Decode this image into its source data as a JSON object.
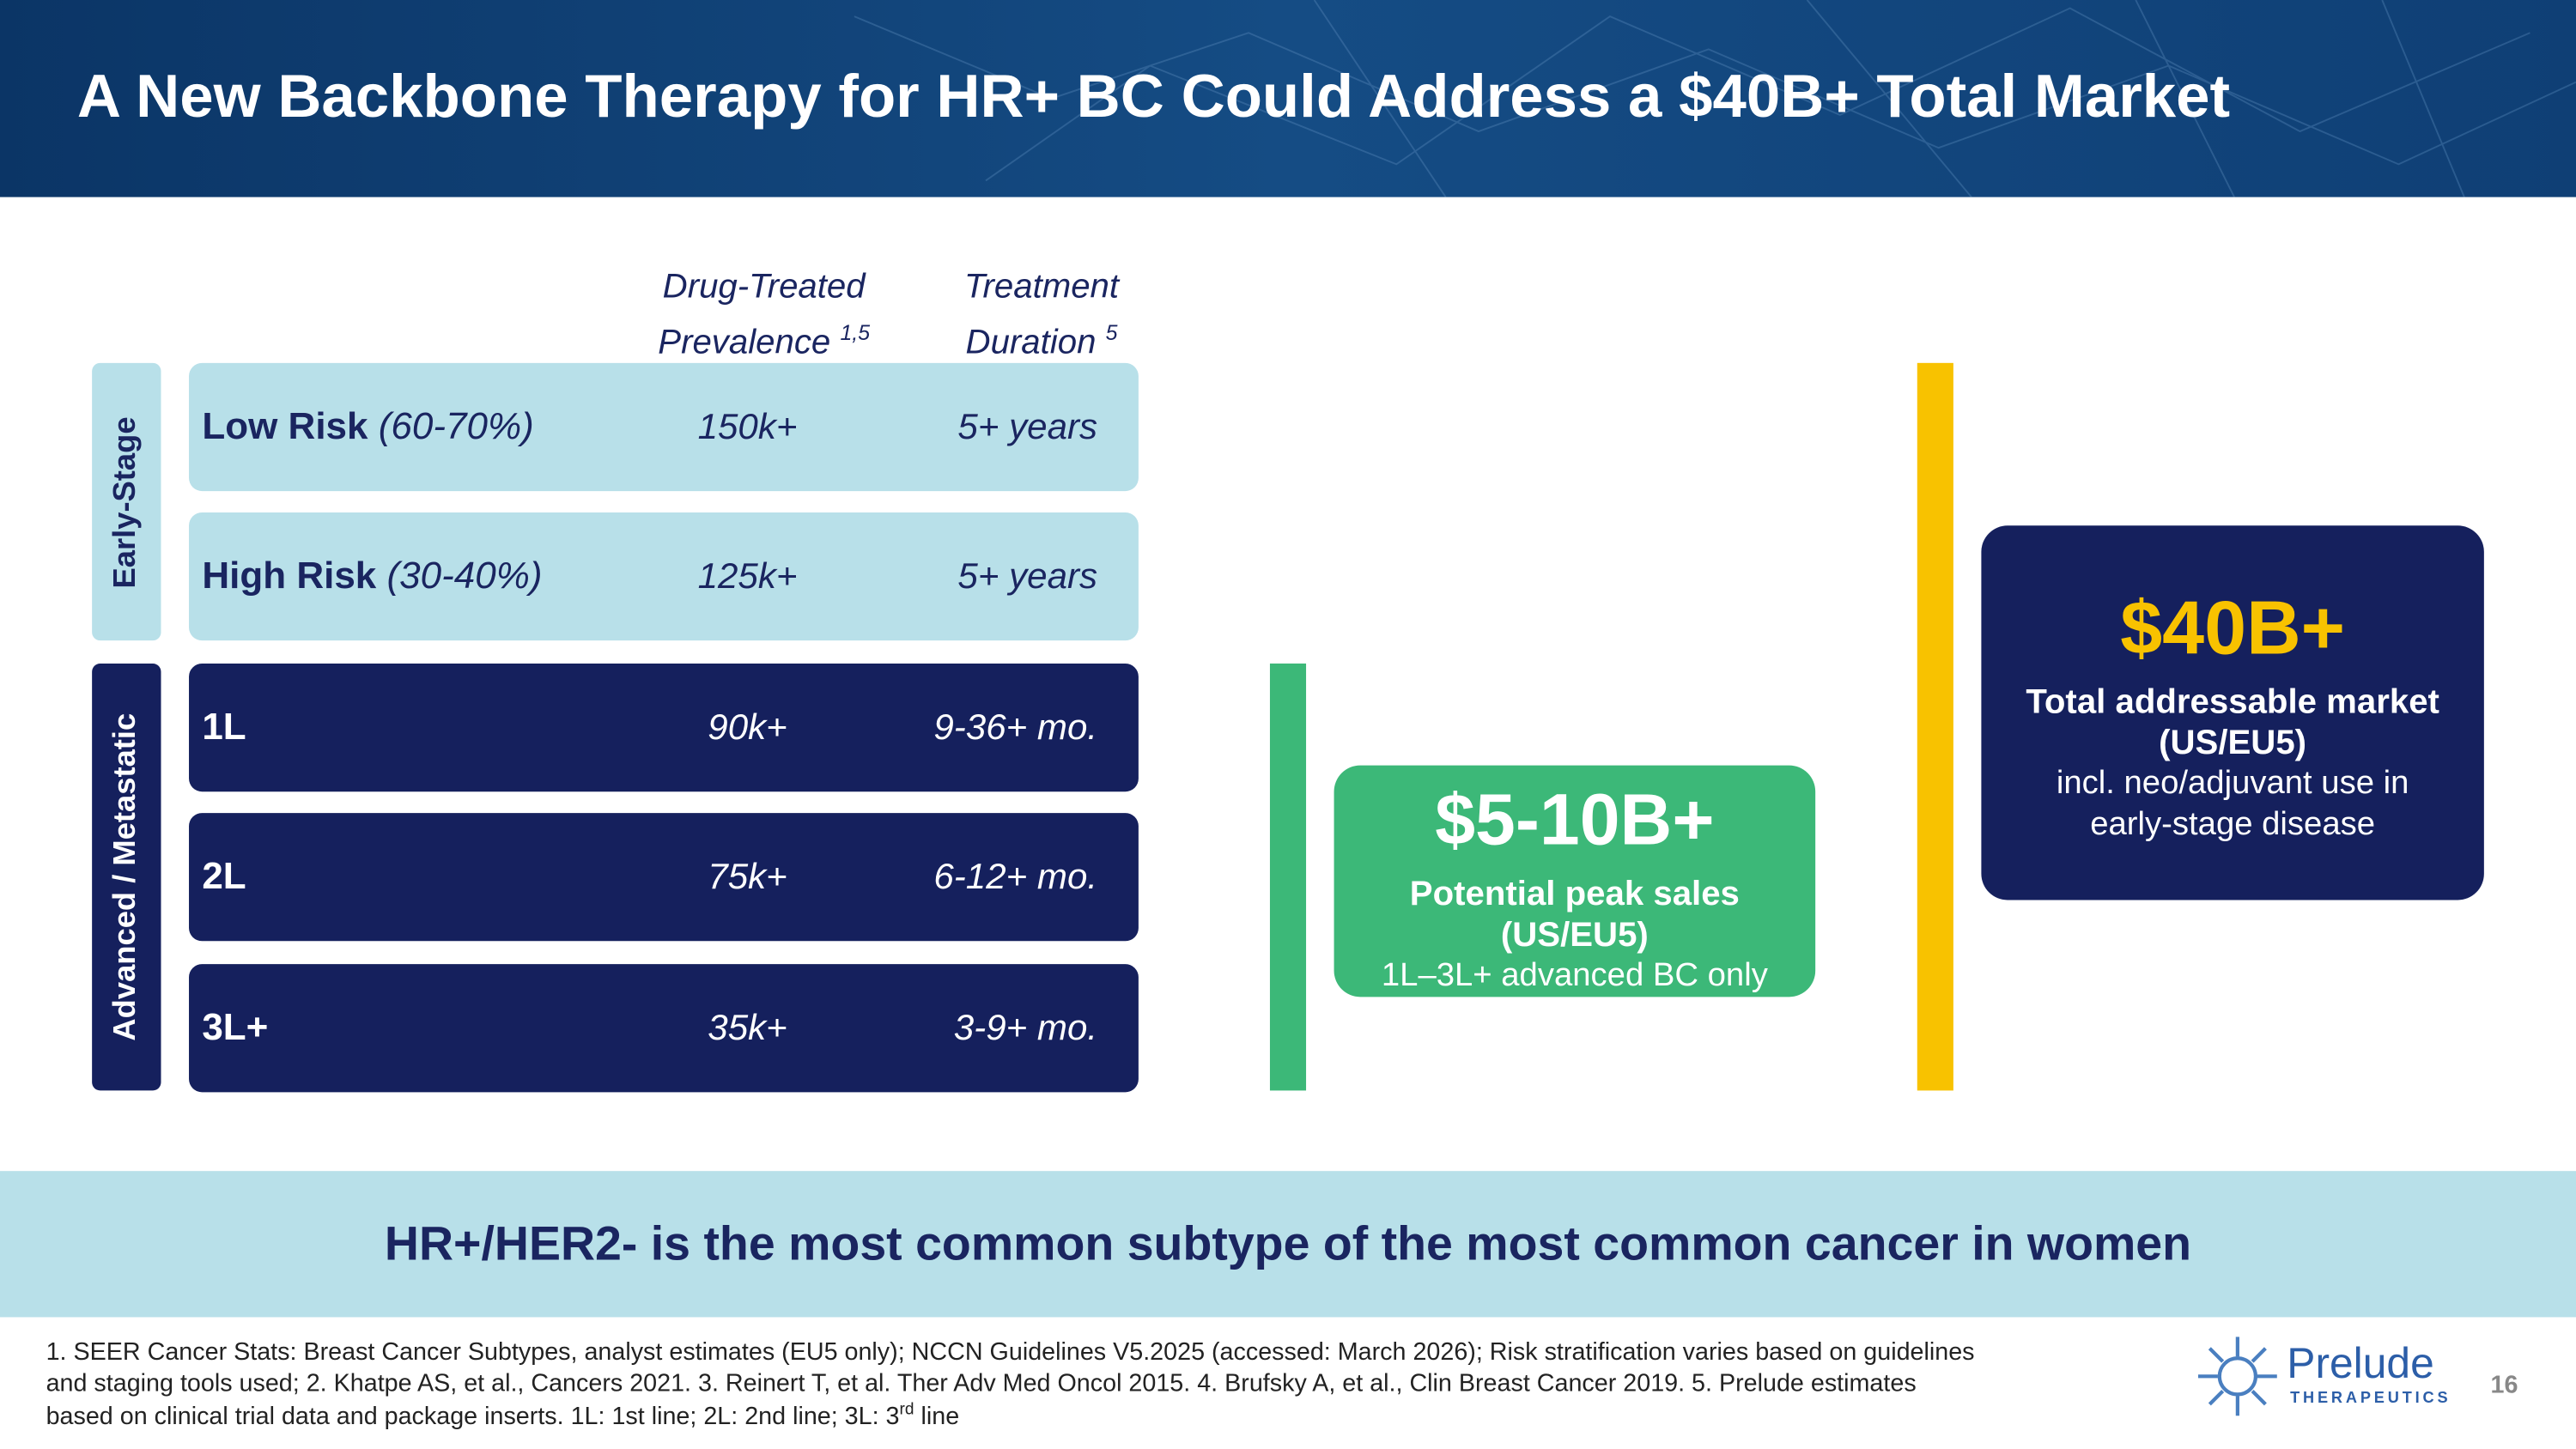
{
  "header": {
    "title": "A New Backbone Therapy for HR+ BC Could Address a $40B+ Total Market"
  },
  "table": {
    "columns": [
      {
        "line1": "Drug-Treated",
        "line2": "Prevalence",
        "sup": "1,5"
      },
      {
        "line1": "Treatment",
        "line2": "Duration",
        "sup": "5"
      }
    ],
    "groups": [
      {
        "label": "Early-Stage"
      },
      {
        "label": "Advanced / Metastatic"
      }
    ],
    "rows": [
      {
        "name": "Low Risk",
        "qualifier": "(60-70%)",
        "prevalence": "150k+",
        "duration": "5+ years"
      },
      {
        "name": "High Risk",
        "qualifier": "(30-40%)",
        "prevalence": "125k+",
        "duration": "5+ years"
      },
      {
        "name": "1L",
        "prevalence": "90k+",
        "duration": "9-36+ mo."
      },
      {
        "name": "2L",
        "prevalence": "75k+",
        "duration": "6-12+ mo."
      },
      {
        "name": "3L+",
        "prevalence": "35k+",
        "duration": "3-9+ mo."
      }
    ]
  },
  "callouts": [
    {
      "value": "$5-10B+",
      "line1": "Potential peak sales",
      "line2": "(US/EU5)",
      "notes": [
        "1L–3L+ advanced BC only"
      ]
    },
    {
      "value": "$40B+",
      "line1": "Total addressable market",
      "line2": "(US/EU5)",
      "notes": [
        "incl. neo/adjuvant use in",
        "early-stage disease"
      ]
    }
  ],
  "banner": "HR+/HER2- is the most common subtype of the most common cancer in women",
  "footnotes": {
    "line1": "1. SEER Cancer Stats: Breast Cancer Subtypes, analyst estimates (EU5 only); NCCN Guidelines V5.2025 (accessed: March 2026); Risk stratification varies based on guidelines",
    "line2": "and staging tools used;  2. Khatpe AS, et al., Cancers 2021. 3. Reinert T, et al. Ther Adv Med Oncol 2015. 4. Brufsky A, et al., Clin Breast Cancer 2019. 5. Prelude estimates",
    "line3": "based on clinical trial data and package inserts.  1L: 1st line; 2L: 2nd line; 3L: 3",
    "line3_sup": "rd",
    "line3_end": " line"
  },
  "logo": {
    "name": "Prelude",
    "tagline": "THERAPEUTICS"
  },
  "page_number": "16"
}
